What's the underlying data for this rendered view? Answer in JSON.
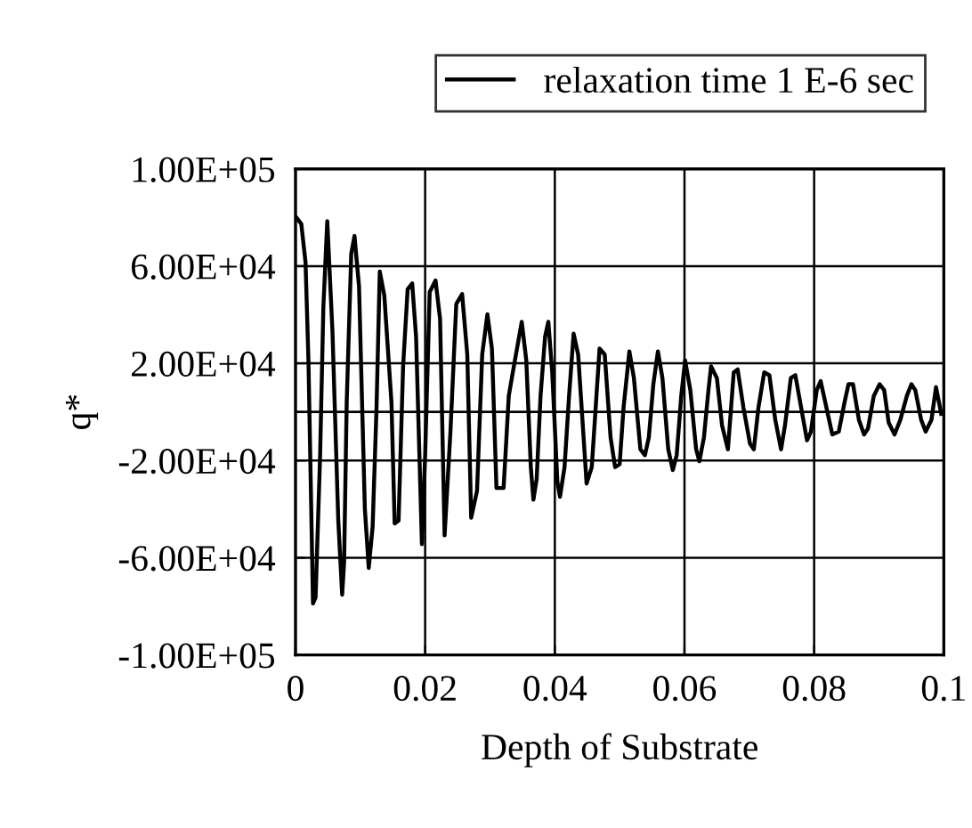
{
  "chart_data": {
    "type": "line",
    "xlabel": "Depth of Substrate",
    "ylabel": "q*",
    "xlim": [
      0,
      0.1
    ],
    "xticks": [
      0,
      0.02,
      0.04,
      0.06,
      0.08,
      0.1
    ],
    "ylim": [
      -100000,
      100000
    ],
    "yticks": [
      {
        "value": -100000,
        "label": "-1.00E+05"
      },
      {
        "value": -60000,
        "label": "-6.00E+04"
      },
      {
        "value": -20000,
        "label": "-2.00E+04"
      },
      {
        "value": 20000,
        "label": "2.00E+04"
      },
      {
        "value": 60000,
        "label": "6.00E+04"
      },
      {
        "value": 100000,
        "label": "1.00E+05"
      }
    ],
    "grid": true,
    "legend": "top right",
    "marker": "none",
    "line_style": "solid",
    "ref_lines": [
      {
        "axis": "y",
        "value": 0,
        "color": "#000000"
      }
    ],
    "series": [
      {
        "name": "relaxation time 1 E-6 sec",
        "color": "#000000",
        "x": [
          0.0002,
          0.0009,
          0.00155,
          0.002,
          0.0027,
          0.0031,
          0.0038,
          0.0043,
          0.0049,
          0.0057,
          0.0066,
          0.0072,
          0.0075,
          0.0079,
          0.0086,
          0.0091,
          0.0098,
          0.0107,
          0.0113,
          0.0119,
          0.0125,
          0.013,
          0.0137,
          0.0148,
          0.0153,
          0.0159,
          0.0166,
          0.0173,
          0.018,
          0.0186,
          0.0195,
          0.02,
          0.0207,
          0.0216,
          0.0223,
          0.023,
          0.0239,
          0.0248,
          0.0257,
          0.0265,
          0.0271,
          0.028,
          0.0288,
          0.0296,
          0.0303,
          0.031,
          0.0321,
          0.0329,
          0.0336,
          0.0349,
          0.0356,
          0.0363,
          0.0367,
          0.0372,
          0.0378,
          0.0385,
          0.039,
          0.0396,
          0.0404,
          0.0408,
          0.0415,
          0.0422,
          0.0429,
          0.0436,
          0.0445,
          0.0449,
          0.0457,
          0.0463,
          0.0469,
          0.0477,
          0.0486,
          0.0493,
          0.05,
          0.0506,
          0.0515,
          0.0522,
          0.0532,
          0.0539,
          0.0545,
          0.0552,
          0.0559,
          0.0566,
          0.0575,
          0.0582,
          0.0588,
          0.0595,
          0.0601,
          0.0609,
          0.0618,
          0.0623,
          0.063,
          0.0637,
          0.0641,
          0.065,
          0.0658,
          0.0667,
          0.0676,
          0.0682,
          0.0691,
          0.0701,
          0.0707,
          0.0714,
          0.0723,
          0.0731,
          0.074,
          0.0749,
          0.0755,
          0.0764,
          0.0771,
          0.078,
          0.0789,
          0.0795,
          0.0804,
          0.081,
          0.0819,
          0.0828,
          0.0838,
          0.0847,
          0.0853,
          0.086,
          0.0869,
          0.0877,
          0.0883,
          0.0892,
          0.0901,
          0.0908,
          0.0915,
          0.0924,
          0.0933,
          0.0943,
          0.095,
          0.0956,
          0.0965,
          0.0972,
          0.0981,
          0.0988,
          0.0996
        ],
        "values": [
          79800,
          77300,
          61500,
          21200,
          -78800,
          -76400,
          -17800,
          43200,
          78500,
          33400,
          -44700,
          -75200,
          -61800,
          4100,
          65100,
          72400,
          51700,
          -39800,
          -64200,
          -47100,
          1700,
          57800,
          47900,
          4100,
          -45900,
          -44700,
          18800,
          50500,
          52900,
          31000,
          -54400,
          -17800,
          49300,
          54100,
          38300,
          -50800,
          -8100,
          44400,
          48500,
          23600,
          -43500,
          -32500,
          23600,
          40200,
          26100,
          -31300,
          -31300,
          6600,
          17500,
          37100,
          21200,
          -22700,
          -36100,
          -27600,
          6600,
          31000,
          37100,
          16300,
          -28800,
          -34900,
          -22700,
          6600,
          32200,
          23600,
          -13000,
          -29500,
          -22700,
          1700,
          26100,
          23600,
          -10500,
          -22700,
          -21500,
          1700,
          24900,
          13900,
          -15400,
          -17800,
          -10500,
          11400,
          24900,
          13900,
          -15400,
          -23900,
          -17800,
          6600,
          21200,
          9000,
          -15400,
          -20300,
          -10500,
          9000,
          18800,
          13900,
          -5600,
          -15400,
          16300,
          17500,
          1700,
          -13000,
          -15400,
          1700,
          16300,
          15100,
          -3200,
          -15400,
          -5600,
          13900,
          15100,
          1700,
          -11700,
          -8100,
          9000,
          12700,
          1700,
          -9300,
          -8100,
          4100,
          11400,
          11400,
          -3200,
          -9300,
          -6900,
          6600,
          11400,
          9000,
          -4400,
          -9300,
          -3200,
          6600,
          11400,
          9000,
          -3200,
          -8100,
          -3200,
          10200,
          -800
        ]
      }
    ]
  }
}
